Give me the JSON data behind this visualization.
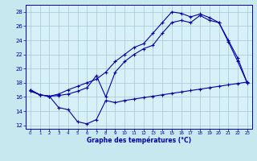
{
  "xlabel": "Graphe des températures (°C)",
  "ylim": [
    11.5,
    29
  ],
  "xlim": [
    -0.5,
    23.5
  ],
  "yticks": [
    12,
    14,
    16,
    18,
    20,
    22,
    24,
    26,
    28
  ],
  "xticks": [
    0,
    1,
    2,
    3,
    4,
    5,
    6,
    7,
    8,
    9,
    10,
    11,
    12,
    13,
    14,
    15,
    16,
    17,
    18,
    19,
    20,
    21,
    22,
    23
  ],
  "bg_color": "#c8e8f0",
  "plot_bg": "#d8f0f8",
  "line_color": "#0000aa",
  "grid_color": "#a0c8d8",
  "line1_x": [
    0,
    1,
    2,
    3,
    4,
    5,
    6,
    7,
    8,
    9,
    10,
    11,
    12,
    13,
    14,
    15,
    16,
    17,
    18,
    19,
    20,
    21,
    22,
    23
  ],
  "line1_y": [
    17.0,
    16.3,
    16.1,
    16.4,
    17.0,
    17.5,
    18.0,
    18.5,
    19.5,
    21.0,
    22.0,
    23.0,
    23.5,
    25.0,
    26.5,
    28.0,
    27.8,
    27.3,
    27.7,
    27.2,
    26.5,
    24.0,
    21.5,
    18.0
  ],
  "line2_x": [
    0,
    1,
    2,
    3,
    4,
    5,
    6,
    7,
    8,
    9,
    10,
    11,
    12,
    13,
    14,
    15,
    16,
    17,
    18,
    19,
    20,
    21,
    22,
    23
  ],
  "line2_y": [
    17.0,
    16.3,
    16.1,
    16.2,
    16.4,
    16.8,
    17.3,
    19.0,
    16.0,
    19.5,
    21.0,
    22.0,
    22.8,
    23.3,
    25.0,
    26.5,
    26.8,
    26.5,
    27.5,
    26.8,
    26.5,
    23.8,
    21.0,
    18.0
  ],
  "line3_x": [
    0,
    1,
    2,
    3,
    4,
    5,
    6,
    7,
    8,
    9,
    10,
    11,
    12,
    13,
    14,
    15,
    16,
    17,
    18,
    19,
    20,
    21,
    22,
    23
  ],
  "line3_y": [
    16.8,
    16.3,
    16.1,
    14.5,
    14.2,
    12.5,
    12.2,
    12.8,
    15.5,
    15.2,
    15.5,
    15.7,
    15.9,
    16.1,
    16.3,
    16.5,
    16.7,
    16.9,
    17.1,
    17.3,
    17.5,
    17.7,
    17.9,
    18.1
  ]
}
